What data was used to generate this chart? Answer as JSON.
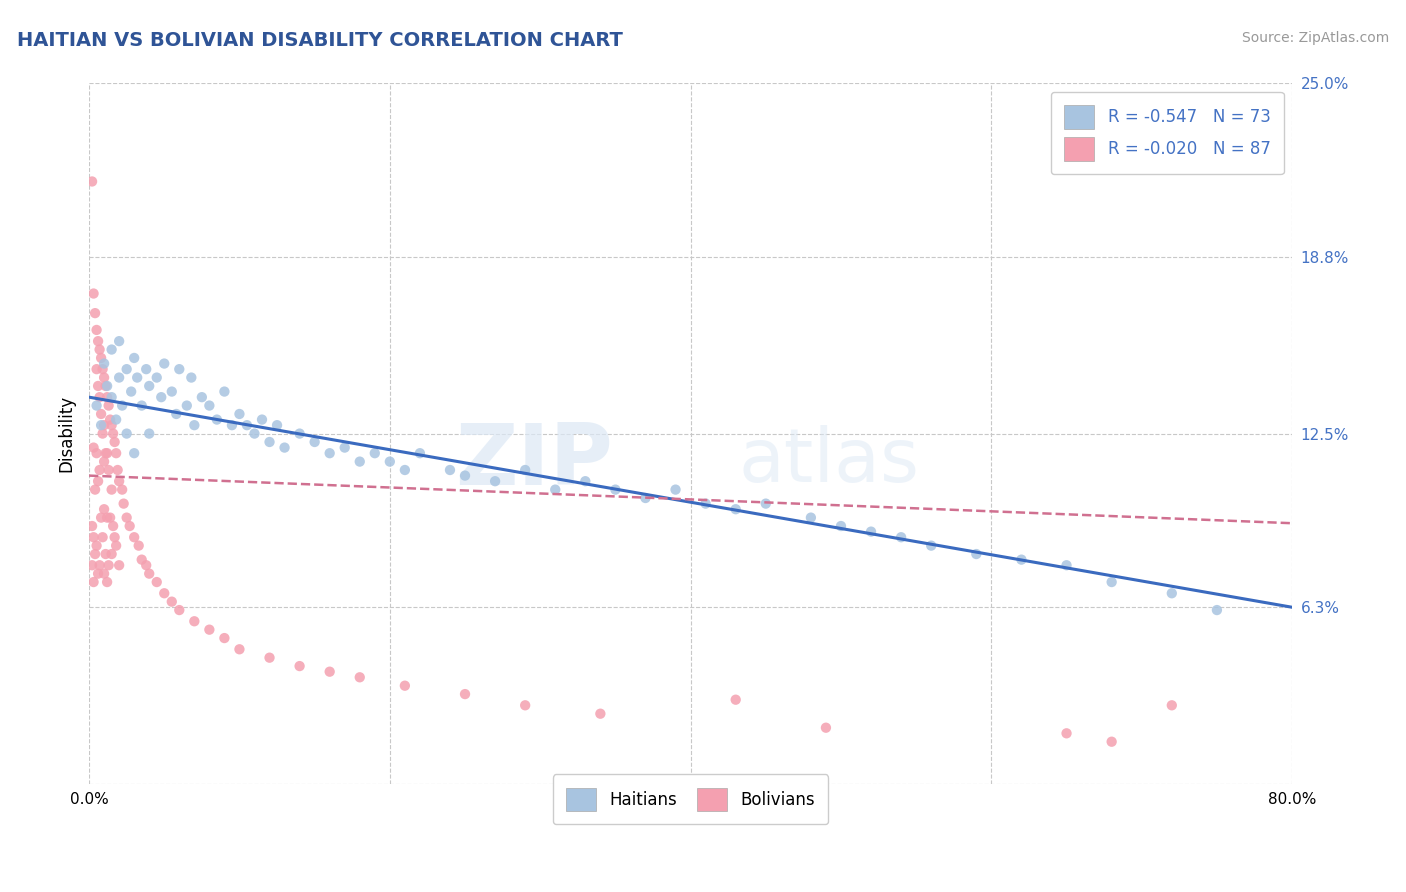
{
  "title": "HAITIAN VS BOLIVIAN DISABILITY CORRELATION CHART",
  "source_text": "Source: ZipAtlas.com",
  "ylabel": "Disability",
  "xlim": [
    0.0,
    0.8
  ],
  "ylim": [
    0.0,
    0.25
  ],
  "yticks": [
    0.0,
    0.063,
    0.125,
    0.188,
    0.25
  ],
  "ytick_labels": [
    "",
    "6.3%",
    "12.5%",
    "18.8%",
    "25.0%"
  ],
  "xticks": [
    0.0,
    0.2,
    0.4,
    0.6,
    0.8
  ],
  "xtick_labels": [
    "0.0%",
    "",
    "",
    "",
    "80.0%"
  ],
  "haitian_color": "#a8c4e0",
  "bolivian_color": "#f4a0b0",
  "haitian_R": -0.547,
  "haitian_N": 73,
  "bolivian_R": -0.02,
  "bolivian_N": 87,
  "watermark_zip": "ZIP",
  "watermark_atlas": "atlas",
  "background_color": "#ffffff",
  "grid_color": "#c8c8c8",
  "legend_label_haitian": "Haitians",
  "legend_label_bolivian": "Bolivians",
  "haitian_line_color": "#3a6abf",
  "bolivian_line_color": "#d07090",
  "haitian_scatter_x": [
    0.005,
    0.008,
    0.01,
    0.012,
    0.015,
    0.015,
    0.018,
    0.02,
    0.02,
    0.022,
    0.025,
    0.025,
    0.028,
    0.03,
    0.03,
    0.032,
    0.035,
    0.038,
    0.04,
    0.04,
    0.045,
    0.048,
    0.05,
    0.055,
    0.058,
    0.06,
    0.065,
    0.068,
    0.07,
    0.075,
    0.08,
    0.085,
    0.09,
    0.095,
    0.1,
    0.105,
    0.11,
    0.115,
    0.12,
    0.125,
    0.13,
    0.14,
    0.15,
    0.16,
    0.17,
    0.18,
    0.19,
    0.2,
    0.21,
    0.22,
    0.24,
    0.25,
    0.27,
    0.29,
    0.31,
    0.33,
    0.35,
    0.37,
    0.39,
    0.41,
    0.43,
    0.45,
    0.48,
    0.5,
    0.52,
    0.54,
    0.56,
    0.59,
    0.62,
    0.65,
    0.68,
    0.72,
    0.75
  ],
  "haitian_scatter_y": [
    0.135,
    0.128,
    0.15,
    0.142,
    0.138,
    0.155,
    0.13,
    0.145,
    0.158,
    0.135,
    0.148,
    0.125,
    0.14,
    0.152,
    0.118,
    0.145,
    0.135,
    0.148,
    0.142,
    0.125,
    0.145,
    0.138,
    0.15,
    0.14,
    0.132,
    0.148,
    0.135,
    0.145,
    0.128,
    0.138,
    0.135,
    0.13,
    0.14,
    0.128,
    0.132,
    0.128,
    0.125,
    0.13,
    0.122,
    0.128,
    0.12,
    0.125,
    0.122,
    0.118,
    0.12,
    0.115,
    0.118,
    0.115,
    0.112,
    0.118,
    0.112,
    0.11,
    0.108,
    0.112,
    0.105,
    0.108,
    0.105,
    0.102,
    0.105,
    0.1,
    0.098,
    0.1,
    0.095,
    0.092,
    0.09,
    0.088,
    0.085,
    0.082,
    0.08,
    0.078,
    0.072,
    0.068,
    0.062
  ],
  "bolivian_scatter_x": [
    0.002,
    0.002,
    0.002,
    0.003,
    0.003,
    0.003,
    0.003,
    0.004,
    0.004,
    0.004,
    0.005,
    0.005,
    0.005,
    0.005,
    0.006,
    0.006,
    0.006,
    0.006,
    0.007,
    0.007,
    0.007,
    0.007,
    0.008,
    0.008,
    0.008,
    0.009,
    0.009,
    0.009,
    0.01,
    0.01,
    0.01,
    0.01,
    0.01,
    0.011,
    0.011,
    0.011,
    0.012,
    0.012,
    0.012,
    0.012,
    0.013,
    0.013,
    0.013,
    0.014,
    0.014,
    0.015,
    0.015,
    0.015,
    0.016,
    0.016,
    0.017,
    0.017,
    0.018,
    0.018,
    0.019,
    0.02,
    0.02,
    0.022,
    0.023,
    0.025,
    0.027,
    0.03,
    0.033,
    0.035,
    0.038,
    0.04,
    0.045,
    0.05,
    0.055,
    0.06,
    0.07,
    0.08,
    0.09,
    0.1,
    0.12,
    0.14,
    0.16,
    0.18,
    0.21,
    0.25,
    0.29,
    0.34,
    0.43,
    0.49,
    0.65,
    0.68,
    0.72
  ],
  "bolivian_scatter_y": [
    0.215,
    0.092,
    0.078,
    0.175,
    0.12,
    0.088,
    0.072,
    0.168,
    0.105,
    0.082,
    0.162,
    0.148,
    0.118,
    0.085,
    0.158,
    0.142,
    0.108,
    0.075,
    0.155,
    0.138,
    0.112,
    0.078,
    0.152,
    0.132,
    0.095,
    0.148,
    0.125,
    0.088,
    0.145,
    0.128,
    0.115,
    0.098,
    0.075,
    0.142,
    0.118,
    0.082,
    0.138,
    0.118,
    0.095,
    0.072,
    0.135,
    0.112,
    0.078,
    0.13,
    0.095,
    0.128,
    0.105,
    0.082,
    0.125,
    0.092,
    0.122,
    0.088,
    0.118,
    0.085,
    0.112,
    0.108,
    0.078,
    0.105,
    0.1,
    0.095,
    0.092,
    0.088,
    0.085,
    0.08,
    0.078,
    0.075,
    0.072,
    0.068,
    0.065,
    0.062,
    0.058,
    0.055,
    0.052,
    0.048,
    0.045,
    0.042,
    0.04,
    0.038,
    0.035,
    0.032,
    0.028,
    0.025,
    0.03,
    0.02,
    0.018,
    0.015,
    0.028
  ]
}
